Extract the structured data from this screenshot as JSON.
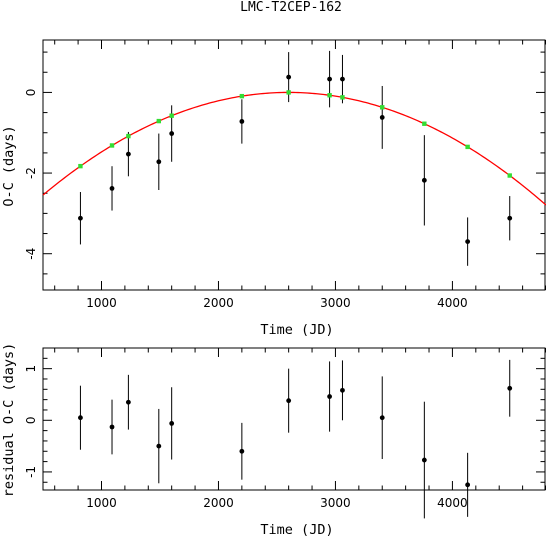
{
  "chart_data": [
    {
      "type": "scatter",
      "title": "LMC-T2CEP-162",
      "xlabel": "Time (JD)",
      "ylabel": "O-C (days)",
      "xlim": [
        500,
        4800
      ],
      "ylim": [
        -4.9,
        1.3
      ],
      "xticks": [
        1000,
        2000,
        3000,
        4000
      ],
      "yticks": [
        0,
        -2,
        -4
      ],
      "grid": false,
      "series": [
        {
          "kind": "points-with-errorbars",
          "color": "#000000",
          "points": [
            {
              "x": 820,
              "y": -3.12,
              "err": 0.65
            },
            {
              "x": 1090,
              "y": -2.38,
              "err": 0.55
            },
            {
              "x": 1230,
              "y": -1.53,
              "err": 0.55
            },
            {
              "x": 1490,
              "y": -1.72,
              "err": 0.7
            },
            {
              "x": 1600,
              "y": -1.02,
              "err": 0.7
            },
            {
              "x": 2200,
              "y": -0.72,
              "err": 0.55
            },
            {
              "x": 2600,
              "y": 0.38,
              "err": 0.62
            },
            {
              "x": 2950,
              "y": 0.33,
              "err": 0.7
            },
            {
              "x": 3060,
              "y": 0.33,
              "err": 0.6
            },
            {
              "x": 3400,
              "y": -0.62,
              "err": 0.78
            },
            {
              "x": 3760,
              "y": -2.18,
              "err": 1.12
            },
            {
              "x": 4130,
              "y": -3.7,
              "err": 0.6
            },
            {
              "x": 4490,
              "y": -3.12,
              "err": 0.55
            }
          ]
        },
        {
          "kind": "curve",
          "color": "#ff0000",
          "model": {
            "peak_x": 2600,
            "peak_y": 0.0,
            "curvature": 5.77e-07
          }
        },
        {
          "kind": "model-points",
          "color": "#33dd33",
          "x": [
            820,
            1090,
            1230,
            1490,
            1600,
            2200,
            2600,
            2950,
            3060,
            3400,
            3760,
            4130,
            4490
          ]
        }
      ]
    },
    {
      "type": "scatter",
      "title": "",
      "xlabel": "Time (JD)",
      "ylabel": "residual O-C (days)",
      "xlim": [
        500,
        4800
      ],
      "ylim": [
        -1.35,
        1.4
      ],
      "xticks": [
        1000,
        2000,
        3000,
        4000
      ],
      "yticks": [
        1,
        0,
        -1
      ],
      "grid": false,
      "series": [
        {
          "kind": "points-with-errorbars",
          "color": "#000000",
          "points": [
            {
              "x": 820,
              "y": 0.05,
              "err": 0.62
            },
            {
              "x": 1090,
              "y": -0.13,
              "err": 0.53
            },
            {
              "x": 1230,
              "y": 0.35,
              "err": 0.53
            },
            {
              "x": 1490,
              "y": -0.5,
              "err": 0.72
            },
            {
              "x": 1600,
              "y": -0.06,
              "err": 0.7
            },
            {
              "x": 2200,
              "y": -0.6,
              "err": 0.55
            },
            {
              "x": 2600,
              "y": 0.38,
              "err": 0.62
            },
            {
              "x": 2950,
              "y": 0.46,
              "err": 0.68
            },
            {
              "x": 3060,
              "y": 0.58,
              "err": 0.58
            },
            {
              "x": 3400,
              "y": 0.05,
              "err": 0.8
            },
            {
              "x": 3760,
              "y": -0.77,
              "err": 1.13
            },
            {
              "x": 4130,
              "y": -1.25,
              "err": 0.62
            },
            {
              "x": 4490,
              "y": 0.62,
              "err": 0.55
            }
          ]
        }
      ]
    }
  ]
}
